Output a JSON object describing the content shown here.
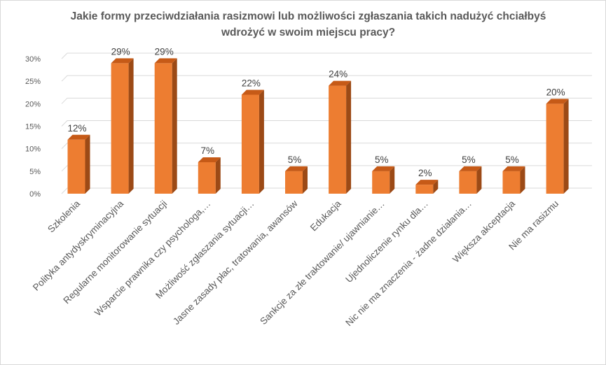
{
  "chart_data": {
    "type": "bar",
    "title": "Jakie formy przeciwdziałania rasizmowi lub możliwości zgłaszania takich nadużyć chciałbyś wdrożyć w swoim miejscu pracy?",
    "title_lines": [
      "Jakie formy przeciwdziałania rasizmowi lub możliwości zgłaszania takich nadużyć chciałbyś",
      "wdrożyć w swoim miejscu pracy?"
    ],
    "categories": [
      "Szkolenia",
      "Polityka antydyskryminacyjna",
      "Regularne monitorowanie sytuacji",
      "Wsparcie prawnika czy psychologa,…",
      "Możliwość zgłaszania sytuacji…",
      "Jasne zasady płac, tratowania, awansów",
      "Edukacja",
      "Sankcje za złe traktowanie/ ujawnianie…",
      "Ujednoliczenie rynku dla…",
      "Nic nie ma znaczenia - żadne działania…",
      "Większa akceptacja",
      "Nie ma rasizmu"
    ],
    "values": [
      12,
      29,
      29,
      7,
      22,
      5,
      24,
      5,
      2,
      5,
      5,
      20
    ],
    "data_labels": [
      "12%",
      "29%",
      "29%",
      "7%",
      "22%",
      "5%",
      "24%",
      "5%",
      "2%",
      "5%",
      "5%",
      "20%"
    ],
    "yticks": [
      0,
      5,
      10,
      15,
      20,
      25,
      30
    ],
    "ytick_labels": [
      "0%",
      "5%",
      "10%",
      "15%",
      "20%",
      "25%",
      "30%"
    ],
    "ylim": [
      0,
      30
    ],
    "xlabel": "",
    "ylabel": "",
    "grid": true,
    "colors": {
      "front": "#ED7D31",
      "side": "#9C4A16",
      "top": "#C65A17",
      "grid": "#d9d9d9"
    }
  }
}
